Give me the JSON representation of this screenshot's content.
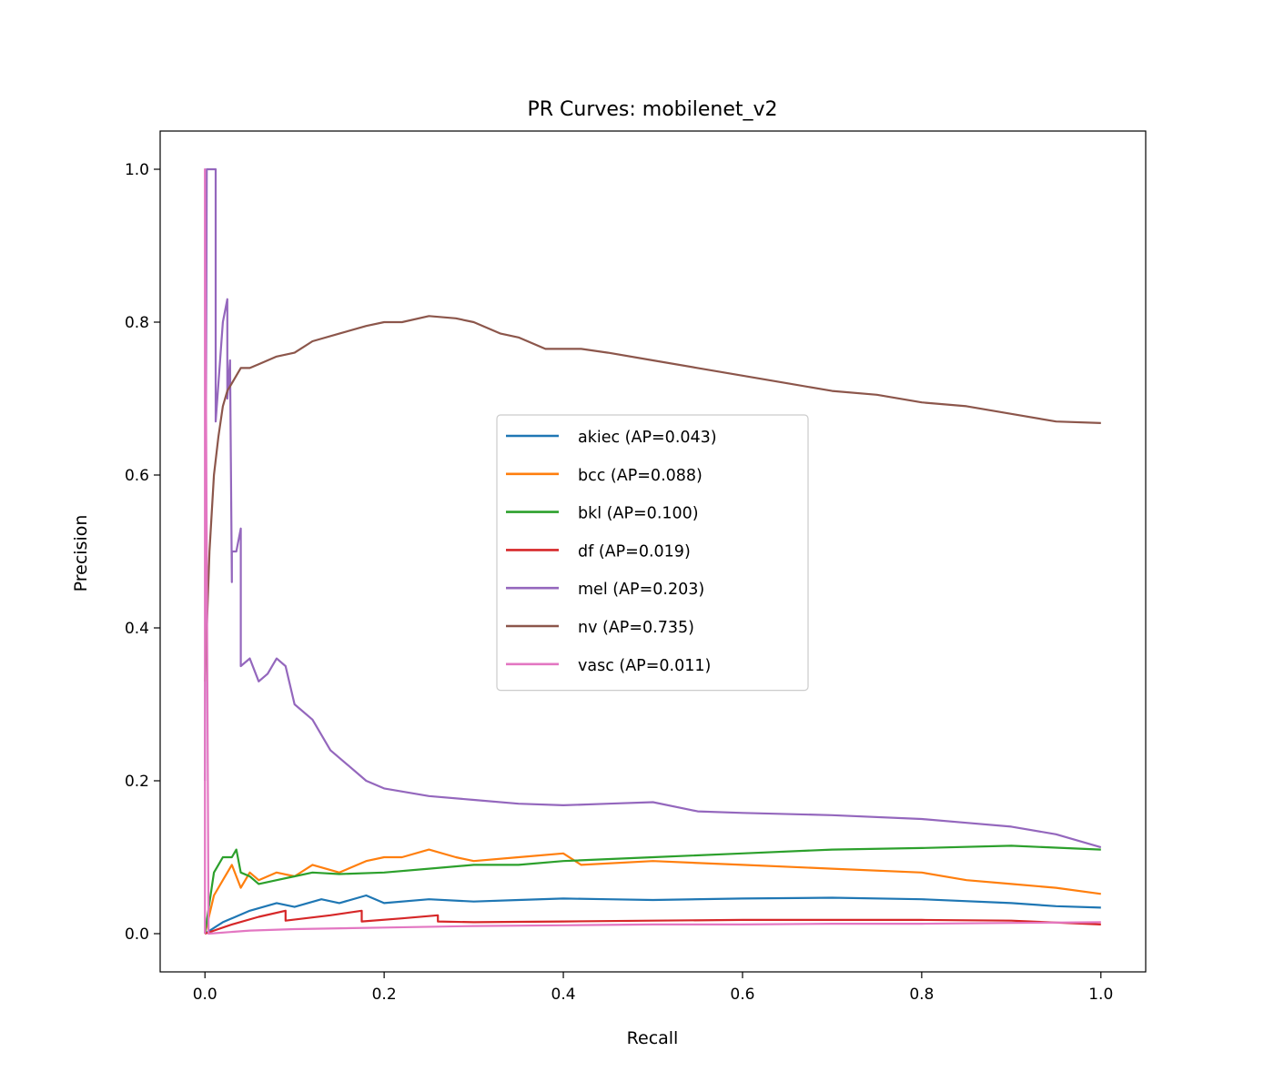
{
  "chart_data": {
    "type": "line",
    "title": "PR Curves: mobilenet_v2",
    "xlabel": "Recall",
    "ylabel": "Precision",
    "xlim": [
      -0.05,
      1.05
    ],
    "ylim": [
      -0.05,
      1.05
    ],
    "xticks": [
      0.0,
      0.2,
      0.4,
      0.6,
      0.8,
      1.0
    ],
    "xtick_labels": [
      "0.0",
      "0.2",
      "0.4",
      "0.6",
      "0.8",
      "1.0"
    ],
    "yticks": [
      0.0,
      0.2,
      0.4,
      0.6,
      0.8,
      1.0
    ],
    "ytick_labels": [
      "0.0",
      "0.2",
      "0.4",
      "0.6",
      "0.8",
      "1.0"
    ],
    "grid": false,
    "legend_position": "center",
    "series": [
      {
        "name": "akiec (AP=0.043)",
        "color": "#1f77b4",
        "x": [
          0.0,
          0.02,
          0.05,
          0.08,
          0.1,
          0.13,
          0.15,
          0.18,
          0.2,
          0.25,
          0.3,
          0.35,
          0.4,
          0.45,
          0.5,
          0.6,
          0.7,
          0.8,
          0.9,
          0.95,
          1.0
        ],
        "y": [
          0.0,
          0.015,
          0.03,
          0.04,
          0.035,
          0.045,
          0.04,
          0.05,
          0.04,
          0.045,
          0.042,
          0.044,
          0.046,
          0.045,
          0.044,
          0.046,
          0.047,
          0.045,
          0.04,
          0.036,
          0.034
        ]
      },
      {
        "name": "bcc (AP=0.088)",
        "color": "#ff7f0e",
        "x": [
          0.0,
          0.01,
          0.02,
          0.03,
          0.04,
          0.05,
          0.06,
          0.08,
          0.1,
          0.12,
          0.15,
          0.18,
          0.2,
          0.22,
          0.25,
          0.28,
          0.3,
          0.35,
          0.4,
          0.42,
          0.5,
          0.6,
          0.7,
          0.8,
          0.85,
          0.9,
          0.95,
          1.0
        ],
        "y": [
          0.0,
          0.05,
          0.07,
          0.09,
          0.06,
          0.08,
          0.07,
          0.08,
          0.075,
          0.09,
          0.08,
          0.095,
          0.1,
          0.1,
          0.11,
          0.1,
          0.095,
          0.1,
          0.105,
          0.09,
          0.095,
          0.09,
          0.085,
          0.08,
          0.07,
          0.065,
          0.06,
          0.052
        ]
      },
      {
        "name": "bkl (AP=0.100)",
        "color": "#2ca02c",
        "x": [
          0.0,
          0.01,
          0.015,
          0.02,
          0.03,
          0.035,
          0.04,
          0.05,
          0.06,
          0.08,
          0.1,
          0.12,
          0.15,
          0.2,
          0.25,
          0.3,
          0.35,
          0.4,
          0.5,
          0.6,
          0.7,
          0.8,
          0.9,
          1.0
        ],
        "y": [
          0.0,
          0.08,
          0.09,
          0.1,
          0.1,
          0.11,
          0.08,
          0.075,
          0.065,
          0.07,
          0.075,
          0.08,
          0.078,
          0.08,
          0.085,
          0.09,
          0.09,
          0.095,
          0.1,
          0.105,
          0.11,
          0.112,
          0.115,
          0.11
        ]
      },
      {
        "name": "df (AP=0.019)",
        "color": "#d62728",
        "x": [
          0.0,
          0.03,
          0.06,
          0.09,
          0.09,
          0.14,
          0.175,
          0.175,
          0.22,
          0.26,
          0.26,
          0.3,
          0.4,
          0.5,
          0.6,
          0.7,
          0.8,
          0.9,
          1.0
        ],
        "y": [
          0.0,
          0.012,
          0.022,
          0.03,
          0.017,
          0.024,
          0.03,
          0.016,
          0.02,
          0.024,
          0.016,
          0.015,
          0.016,
          0.017,
          0.018,
          0.018,
          0.018,
          0.017,
          0.012
        ]
      },
      {
        "name": "mel (AP=0.203)",
        "color": "#9467bd",
        "x": [
          0.0,
          0.002,
          0.004,
          0.008,
          0.012,
          0.012,
          0.02,
          0.025,
          0.025,
          0.028,
          0.03,
          0.03,
          0.035,
          0.04,
          0.04,
          0.05,
          0.06,
          0.07,
          0.08,
          0.09,
          0.1,
          0.12,
          0.14,
          0.16,
          0.18,
          0.2,
          0.25,
          0.3,
          0.35,
          0.4,
          0.45,
          0.5,
          0.55,
          0.6,
          0.7,
          0.8,
          0.85,
          0.9,
          0.95,
          1.0
        ],
        "y": [
          0.2,
          1.0,
          1.0,
          1.0,
          1.0,
          0.67,
          0.8,
          0.83,
          0.7,
          0.75,
          0.46,
          0.5,
          0.5,
          0.53,
          0.35,
          0.36,
          0.33,
          0.34,
          0.36,
          0.35,
          0.3,
          0.28,
          0.24,
          0.22,
          0.2,
          0.19,
          0.18,
          0.175,
          0.17,
          0.168,
          0.17,
          0.172,
          0.16,
          0.158,
          0.155,
          0.15,
          0.145,
          0.14,
          0.13,
          0.113
        ]
      },
      {
        "name": "nv (AP=0.735)",
        "color": "#8c564b",
        "x": [
          0.0,
          0.005,
          0.01,
          0.015,
          0.02,
          0.025,
          0.03,
          0.035,
          0.04,
          0.05,
          0.06,
          0.08,
          0.1,
          0.12,
          0.15,
          0.18,
          0.2,
          0.22,
          0.25,
          0.28,
          0.3,
          0.33,
          0.35,
          0.38,
          0.4,
          0.42,
          0.45,
          0.5,
          0.55,
          0.6,
          0.65,
          0.7,
          0.75,
          0.8,
          0.85,
          0.9,
          0.95,
          1.0
        ],
        "y": [
          0.33,
          0.5,
          0.6,
          0.65,
          0.69,
          0.71,
          0.72,
          0.73,
          0.74,
          0.74,
          0.745,
          0.755,
          0.76,
          0.775,
          0.785,
          0.795,
          0.8,
          0.8,
          0.808,
          0.805,
          0.8,
          0.785,
          0.78,
          0.765,
          0.765,
          0.765,
          0.76,
          0.75,
          0.74,
          0.73,
          0.72,
          0.71,
          0.705,
          0.695,
          0.69,
          0.68,
          0.67,
          0.668
        ]
      },
      {
        "name": "vasc (AP=0.011)",
        "color": "#e377c2",
        "x": [
          0.0,
          0.0,
          0.004,
          0.05,
          0.1,
          0.2,
          0.3,
          0.4,
          0.5,
          0.6,
          0.7,
          0.8,
          0.9,
          1.0
        ],
        "y": [
          0.0,
          1.0,
          0.0,
          0.004,
          0.006,
          0.008,
          0.01,
          0.011,
          0.012,
          0.012,
          0.013,
          0.013,
          0.014,
          0.015
        ]
      }
    ]
  }
}
